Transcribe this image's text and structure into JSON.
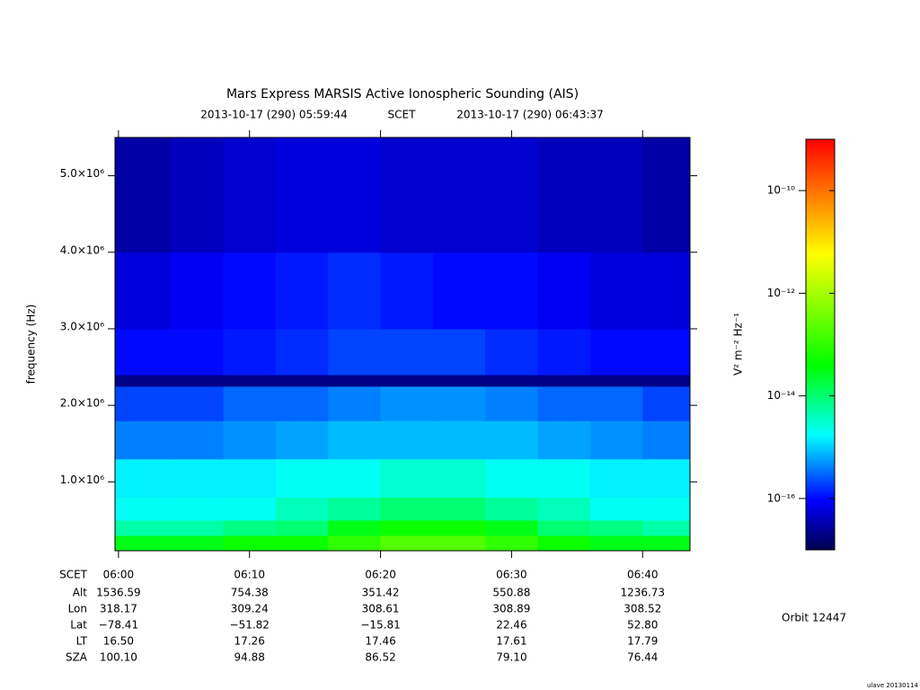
{
  "chart_data": {
    "type": "heatmap",
    "title": "Mars Express MARSIS Active Ionospheric Sounding (AIS)",
    "subtitle": {
      "start": "2013-10-17 (290) 05:59:44",
      "label": "SCET",
      "end": "2013-10-17 (290) 06:43:37"
    },
    "ylabel": "frequency (Hz)",
    "x_label": "SCET",
    "xticks": [
      "06:00",
      "06:10",
      "06:20",
      "06:30",
      "06:40"
    ],
    "time_bins": [
      "05:59:44",
      "06:04",
      "06:08",
      "06:12",
      "06:16",
      "06:20",
      "06:24",
      "06:28",
      "06:32",
      "06:36",
      "06:40",
      "06:43:37"
    ],
    "ylim": [
      100000,
      5500000
    ],
    "yticks": [
      {
        "value": 1000000,
        "label": "1.0×10⁶"
      },
      {
        "value": 2000000,
        "label": "2.0×10⁶"
      },
      {
        "value": 3000000,
        "label": "3.0×10⁶"
      },
      {
        "value": 4000000,
        "label": "4.0×10⁶"
      },
      {
        "value": 5000000,
        "label": "5.0×10⁶"
      }
    ],
    "freq_bins": [
      100000,
      300000,
      500000,
      800000,
      1300000,
      1800000,
      2250000,
      2400000,
      3000000,
      4000000,
      5500000
    ],
    "z": [
      [
        3e-14,
        3e-14,
        5e-14,
        5e-14,
        1e-13,
        2e-13,
        2e-13,
        1e-13,
        5e-14,
        3e-14,
        3e-14
      ],
      [
        5e-15,
        5e-15,
        8e-15,
        1e-14,
        3e-14,
        5e-14,
        5e-14,
        3e-14,
        1e-14,
        8e-15,
        5e-15
      ],
      [
        2e-15,
        2e-15,
        2e-15,
        4e-15,
        6e-15,
        1e-14,
        1e-14,
        6e-15,
        4e-15,
        2e-15,
        2e-15
      ],
      [
        1.5e-15,
        1.5e-15,
        1.5e-15,
        2e-15,
        2e-15,
        3e-15,
        3e-15,
        2e-15,
        2e-15,
        1.5e-15,
        1.5e-15
      ],
      [
        4e-16,
        4e-16,
        5e-16,
        6e-16,
        8e-16,
        8e-16,
        8e-16,
        8e-16,
        6e-16,
        5e-16,
        4e-16
      ],
      [
        2e-16,
        2e-16,
        3e-16,
        3e-16,
        4e-16,
        5e-16,
        5e-16,
        4e-16,
        3e-16,
        3e-16,
        2e-16
      ],
      [
        2e-17,
        2e-17,
        2e-17,
        2e-17,
        2e-17,
        2e-17,
        2e-17,
        2e-17,
        2e-17,
        2e-17,
        2e-17
      ],
      [
        1e-16,
        1e-16,
        1.2e-16,
        1.5e-16,
        2e-16,
        2e-16,
        2e-16,
        1.5e-16,
        1.2e-16,
        1e-16,
        1e-16
      ],
      [
        6e-17,
        8e-17,
        1e-16,
        1.2e-16,
        1.5e-16,
        1.2e-16,
        1e-16,
        1e-16,
        8e-17,
        6e-17,
        6e-17
      ],
      [
        3e-17,
        4e-17,
        5e-17,
        6e-17,
        6e-17,
        5e-17,
        5e-17,
        5e-17,
        4e-17,
        4e-17,
        3e-17
      ]
    ],
    "zlim": [
      1e-17,
      1e-09
    ],
    "zlog": true,
    "zticks": [
      {
        "value": 1e-10,
        "label": "10⁻¹⁰"
      },
      {
        "value": 1e-12,
        "label": "10⁻¹²"
      },
      {
        "value": 1e-14,
        "label": "10⁻¹⁴"
      },
      {
        "value": 1e-16,
        "label": "10⁻¹⁶"
      }
    ],
    "zlabel": "V² m⁻² Hz⁻¹",
    "colorscale": [
      "#00004e",
      "#0000ff",
      "#00ffff",
      "#00ff00",
      "#ffff00",
      "#ff0000"
    ]
  },
  "ephemeris": {
    "labels": [
      "Alt",
      "Lon",
      "Lat",
      "LT",
      "SZA"
    ],
    "rows": [
      [
        "1536.59",
        "754.38",
        "351.42",
        "550.88",
        "1236.73"
      ],
      [
        "318.17",
        "309.24",
        "308.61",
        "308.89",
        "308.52"
      ],
      [
        "−78.41",
        "−51.82",
        "−15.81",
        "22.46",
        "52.80"
      ],
      [
        "16.50",
        "17.26",
        "17.46",
        "17.61",
        "17.79"
      ],
      [
        "100.10",
        "94.88",
        "86.52",
        "79.10",
        "76.44"
      ]
    ]
  },
  "orbit": "Orbit 12447",
  "footer": "ulave 20130114"
}
